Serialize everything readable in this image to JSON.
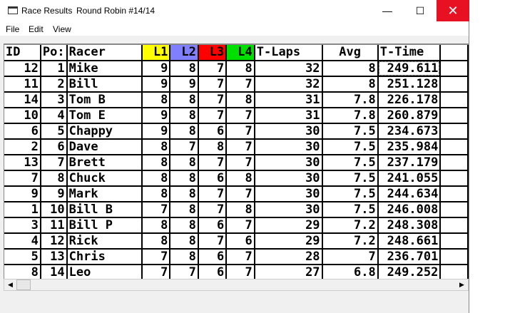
{
  "window": {
    "title": "Race Results",
    "subtitle": "Round Robin #14/14",
    "minimize": "—",
    "maximize": "☐",
    "close": "✕"
  },
  "menu": [
    "File",
    "Edit",
    "View"
  ],
  "columns": [
    {
      "label": "ID",
      "bg": "#ffffff",
      "align": "left"
    },
    {
      "label": "Po:",
      "bg": "#ffffff",
      "align": "left"
    },
    {
      "label": "Racer",
      "bg": "#ffffff",
      "align": "left"
    },
    {
      "label": "L1",
      "bg": "#ffff00",
      "align": "right"
    },
    {
      "label": "L2",
      "bg": "#8080ff",
      "align": "right"
    },
    {
      "label": "L3",
      "bg": "#ff0000",
      "align": "right"
    },
    {
      "label": "L4",
      "bg": "#00e000",
      "align": "right"
    },
    {
      "label": "T-Laps",
      "bg": "#ffffff",
      "align": "left"
    },
    {
      "label": "Avg",
      "bg": "#ffffff",
      "align": "center"
    },
    {
      "label": "T-Time",
      "bg": "#ffffff",
      "align": "left"
    },
    {
      "label": "",
      "bg": "#ffffff",
      "align": "left"
    }
  ],
  "rows": [
    [
      "12",
      "1",
      "Mike",
      "9",
      "8",
      "7",
      "8",
      "32",
      "8",
      "249.611",
      ""
    ],
    [
      "11",
      "2",
      "Bill",
      "9",
      "9",
      "7",
      "7",
      "32",
      "8",
      "251.128",
      ""
    ],
    [
      "14",
      "3",
      "Tom B",
      "8",
      "8",
      "7",
      "8",
      "31",
      "7.8",
      "226.178",
      ""
    ],
    [
      "10",
      "4",
      "Tom E",
      "9",
      "8",
      "7",
      "7",
      "31",
      "7.8",
      "260.879",
      ""
    ],
    [
      "6",
      "5",
      "Chappy",
      "9",
      "8",
      "6",
      "7",
      "30",
      "7.5",
      "234.673",
      ""
    ],
    [
      "2",
      "6",
      "Dave",
      "8",
      "7",
      "8",
      "7",
      "30",
      "7.5",
      "235.984",
      ""
    ],
    [
      "13",
      "7",
      "Brett",
      "8",
      "8",
      "7",
      "7",
      "30",
      "7.5",
      "237.179",
      ""
    ],
    [
      "7",
      "8",
      "Chuck",
      "8",
      "8",
      "6",
      "8",
      "30",
      "7.5",
      "241.055",
      ""
    ],
    [
      "9",
      "9",
      "Mark",
      "8",
      "8",
      "7",
      "7",
      "30",
      "7.5",
      "244.634",
      ""
    ],
    [
      "1",
      "10",
      "Bill B",
      "7",
      "8",
      "7",
      "8",
      "30",
      "7.5",
      "246.008",
      ""
    ],
    [
      "3",
      "11",
      "Bill P",
      "8",
      "8",
      "6",
      "7",
      "29",
      "7.2",
      "248.308",
      ""
    ],
    [
      "4",
      "12",
      "Rick",
      "8",
      "8",
      "7",
      "6",
      "29",
      "7.2",
      "248.661",
      ""
    ],
    [
      "5",
      "13",
      "Chris",
      "7",
      "8",
      "6",
      "7",
      "28",
      "7",
      "236.701",
      ""
    ],
    [
      "8",
      "14",
      "Leo",
      "7",
      "7",
      "6",
      "7",
      "27",
      "6.8",
      "249.252",
      ""
    ]
  ],
  "scrollbar": {
    "left": "◀",
    "right": "▶"
  }
}
